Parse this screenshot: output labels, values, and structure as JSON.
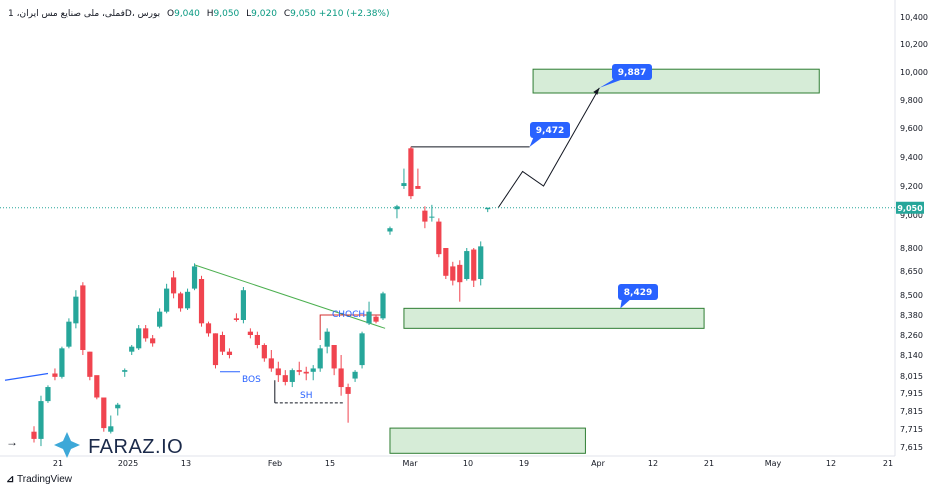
{
  "header": {
    "symbol": "فملی، ملی صنایع مس ایران، 1D، بورس",
    "o_label": "O",
    "o": "9,040",
    "h_label": "H",
    "h": "9,050",
    "l_label": "L",
    "l": "9,020",
    "c_label": "C",
    "c": "9,050",
    "change": "+210 (+2.38%)"
  },
  "branding": {
    "tradingview": "TradingView",
    "watermark": "FARAZ.IO"
  },
  "chart_data": {
    "type": "candlestick",
    "colors": {
      "up": "#26a69a",
      "down": "#f0444f",
      "zone": "#c8e6c9",
      "zone_border": "#2e7d32",
      "label_bg": "#2962ff",
      "trend": "#4caf50",
      "price_line": "#26a69a"
    },
    "y_ticks": [
      "10,400",
      "10,200",
      "10,000",
      "9,800",
      "9,600",
      "9,400",
      "9,200",
      "9,000",
      "8,800",
      "8,650",
      "8,500",
      "8,380",
      "8,260",
      "8,140",
      "8,015",
      "7,915",
      "7,815",
      "7,715",
      "7,615"
    ],
    "x_ticks": [
      "21",
      "2025",
      "13",
      "Feb",
      "15",
      "Mar",
      "10",
      "19",
      "Apr",
      "12",
      "21",
      "May",
      "12",
      "21"
    ],
    "last_price": "9,050",
    "candles": [
      {
        "o": 7700,
        "h": 7730,
        "l": 7640,
        "c": 7660
      },
      {
        "o": 7660,
        "h": 7900,
        "l": 7620,
        "c": 7870
      },
      {
        "o": 7870,
        "h": 7960,
        "l": 7860,
        "c": 7950
      },
      {
        "o": 8030,
        "h": 8060,
        "l": 7990,
        "c": 8010
      },
      {
        "o": 8010,
        "h": 8190,
        "l": 8000,
        "c": 8180
      },
      {
        "o": 8190,
        "h": 8360,
        "l": 8180,
        "c": 8340
      },
      {
        "o": 8330,
        "h": 8530,
        "l": 8300,
        "c": 8490
      },
      {
        "o": 8560,
        "h": 8580,
        "l": 8140,
        "c": 8170
      },
      {
        "o": 8160,
        "h": 8160,
        "l": 7990,
        "c": 8010
      },
      {
        "o": 8020,
        "h": 8010,
        "l": 7880,
        "c": 7890
      },
      {
        "o": 7890,
        "h": 7880,
        "l": 7700,
        "c": 7720
      },
      {
        "o": 7700,
        "h": 7790,
        "l": 7690,
        "c": 7730
      },
      {
        "o": 7830,
        "h": 7860,
        "l": 7790,
        "c": 7850
      },
      {
        "o": 8040,
        "h": 8060,
        "l": 8010,
        "c": 8050
      },
      {
        "o": 8160,
        "h": 8200,
        "l": 8140,
        "c": 8190
      },
      {
        "o": 8180,
        "h": 8320,
        "l": 8170,
        "c": 8300
      },
      {
        "o": 8300,
        "h": 8320,
        "l": 8220,
        "c": 8240
      },
      {
        "o": 8240,
        "h": 8260,
        "l": 8190,
        "c": 8210
      },
      {
        "o": 8310,
        "h": 8420,
        "l": 8300,
        "c": 8400
      },
      {
        "o": 8400,
        "h": 8570,
        "l": 8390,
        "c": 8540
      },
      {
        "o": 8610,
        "h": 8650,
        "l": 8480,
        "c": 8510
      },
      {
        "o": 8510,
        "h": 8520,
        "l": 8400,
        "c": 8420
      },
      {
        "o": 8420,
        "h": 8540,
        "l": 8410,
        "c": 8520
      },
      {
        "o": 8540,
        "h": 8700,
        "l": 8530,
        "c": 8680
      },
      {
        "o": 8600,
        "h": 8620,
        "l": 8310,
        "c": 8330
      },
      {
        "o": 8330,
        "h": 8340,
        "l": 8250,
        "c": 8270
      },
      {
        "o": 8270,
        "h": 8270,
        "l": 8060,
        "c": 8080
      },
      {
        "o": 8260,
        "h": 8280,
        "l": 8140,
        "c": 8160
      },
      {
        "o": 8160,
        "h": 8180,
        "l": 8120,
        "c": 8140
      },
      {
        "o": 8360,
        "h": 8390,
        "l": 8340,
        "c": 8350
      },
      {
        "o": 8350,
        "h": 8550,
        "l": 8330,
        "c": 8530
      },
      {
        "o": 8280,
        "h": 8300,
        "l": 8240,
        "c": 8260
      },
      {
        "o": 8260,
        "h": 8280,
        "l": 8180,
        "c": 8200
      },
      {
        "o": 8200,
        "h": 8210,
        "l": 8100,
        "c": 8120
      },
      {
        "o": 8120,
        "h": 8170,
        "l": 8040,
        "c": 8060
      },
      {
        "o": 8060,
        "h": 8100,
        "l": 7980,
        "c": 8020
      },
      {
        "o": 8020,
        "h": 8050,
        "l": 7960,
        "c": 7980
      },
      {
        "o": 7980,
        "h": 8060,
        "l": 7950,
        "c": 8050
      },
      {
        "o": 8050,
        "h": 8100,
        "l": 8020,
        "c": 8040
      },
      {
        "o": 8040,
        "h": 8070,
        "l": 7990,
        "c": 8030
      },
      {
        "o": 8040,
        "h": 8080,
        "l": 7990,
        "c": 8060
      },
      {
        "o": 8060,
        "h": 8200,
        "l": 8040,
        "c": 8180
      },
      {
        "o": 8190,
        "h": 8300,
        "l": 8150,
        "c": 8280
      },
      {
        "o": 8200,
        "h": 8200,
        "l": 8020,
        "c": 8060
      },
      {
        "o": 8060,
        "h": 8140,
        "l": 7900,
        "c": 7950
      },
      {
        "o": 7950,
        "h": 7970,
        "l": 7750,
        "c": 7910
      },
      {
        "o": 8000,
        "h": 8050,
        "l": 7980,
        "c": 8040
      },
      {
        "o": 8080,
        "h": 8280,
        "l": 8060,
        "c": 8270
      },
      {
        "o": 8330,
        "h": 8460,
        "l": 8320,
        "c": 8400
      },
      {
        "o": 8370,
        "h": 8380,
        "l": 8330,
        "c": 8340
      },
      {
        "o": 8360,
        "h": 8520,
        "l": 8350,
        "c": 8510
      },
      {
        "o": 8900,
        "h": 8930,
        "l": 8880,
        "c": 8920
      },
      {
        "o": 9040,
        "h": 9070,
        "l": 8980,
        "c": 9060
      },
      {
        "o": 9200,
        "h": 9320,
        "l": 9180,
        "c": 9220
      },
      {
        "o": 9460,
        "h": 9470,
        "l": 9110,
        "c": 9130
      },
      {
        "o": 9200,
        "h": 9320,
        "l": 9190,
        "c": 9180
      },
      {
        "o": 9030,
        "h": 9060,
        "l": 8920,
        "c": 8960
      },
      {
        "o": 8990,
        "h": 9070,
        "l": 8960,
        "c": 8990
      },
      {
        "o": 8960,
        "h": 8980,
        "l": 8740,
        "c": 8760
      },
      {
        "o": 8800,
        "h": 8800,
        "l": 8600,
        "c": 8620
      },
      {
        "o": 8680,
        "h": 8710,
        "l": 8560,
        "c": 8590
      },
      {
        "o": 8690,
        "h": 8720,
        "l": 8460,
        "c": 8580
      },
      {
        "o": 8600,
        "h": 8800,
        "l": 8590,
        "c": 8780
      },
      {
        "o": 8790,
        "h": 8800,
        "l": 8550,
        "c": 8590
      },
      {
        "o": 8600,
        "h": 8840,
        "l": 8560,
        "c": 8810
      },
      {
        "o": 9040,
        "h": 9050,
        "l": 9020,
        "c": 9050
      }
    ],
    "zones": [
      {
        "from_bar": 71.5,
        "to_bar": 112.5,
        "low": 9850,
        "high": 10020
      },
      {
        "from_bar": 53,
        "to_bar": 96,
        "low": 8300,
        "high": 8420
      },
      {
        "from_bar": 51,
        "to_bar": 79,
        "low": 7580,
        "high": 7720
      }
    ],
    "price_labels": [
      "9,887",
      "9,472",
      "8,429"
    ],
    "annotations": [
      "CHOCH",
      "BOS",
      "SH"
    ]
  }
}
